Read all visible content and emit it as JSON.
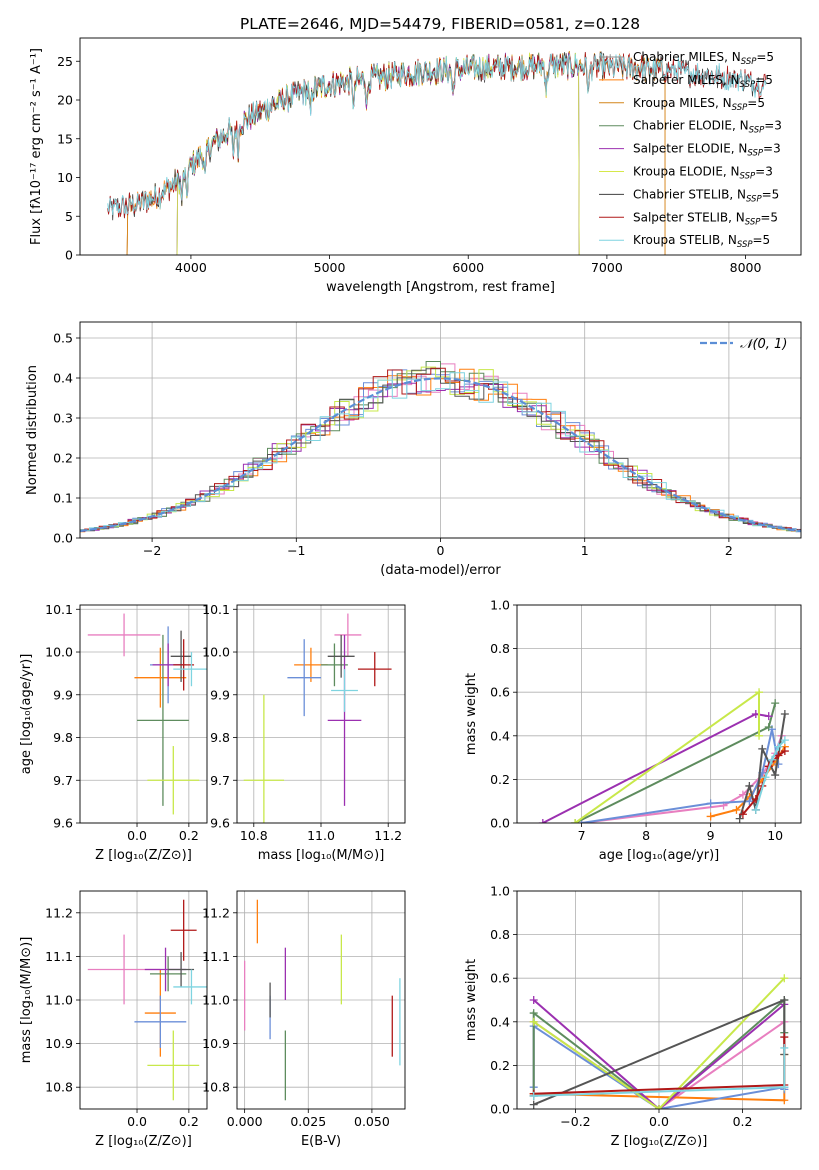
{
  "figure_title": "PLATE=2646, MJD=54479, FIBERID=0581, z=0.128",
  "models": [
    {
      "label": "Chabrier MILES",
      "nssp": "5",
      "color": "#8c8c8c"
    },
    {
      "label": "Salpeter MILES",
      "nssp": "5",
      "color": "#ff7f0e"
    },
    {
      "label": "Kroupa MILES",
      "nssp": "5",
      "color": "#d4861a"
    },
    {
      "label": "Chabrier ELODIE",
      "nssp": "3",
      "color": "#5e8c5e"
    },
    {
      "label": "Salpeter ELODIE",
      "nssp": "3",
      "color": "#9b30b0"
    },
    {
      "label": "Kroupa ELODIE",
      "nssp": "3",
      "color": "#d6e84a"
    },
    {
      "label": "Chabrier STELIB",
      "nssp": "5",
      "color": "#404040"
    },
    {
      "label": "Salpeter STELIB",
      "nssp": "5",
      "color": "#b01818"
    },
    {
      "label": "Kroupa STELIB",
      "nssp": "5",
      "color": "#7fd4e0"
    }
  ],
  "panel_colors": [
    "#e87fc0",
    "#ff7f0e",
    "#6b8fd8",
    "#5e8c5e",
    "#9b30b0",
    "#c8e84a",
    "#555555",
    "#b01818",
    "#7fd4e0"
  ],
  "chart_data": [
    {
      "id": "spectrum",
      "type": "line",
      "title": "PLATE=2646, MJD=54479, FIBERID=0581, z=0.128",
      "xlabel": "wavelength [Angstrom, rest frame]",
      "ylabel": "Flux [fλ10⁻¹⁷ erg cm⁻² s⁻¹ A⁻¹]",
      "xlim": [
        3200,
        8400
      ],
      "ylim": [
        0,
        28
      ],
      "xticks": [
        4000,
        5000,
        6000,
        7000,
        8000
      ],
      "yticks": [
        0,
        5,
        10,
        15,
        20,
        25
      ],
      "spectrum_anchor_points": {
        "x": [
          3450,
          3600,
          3750,
          3900,
          4000,
          4200,
          4400,
          4600,
          4800,
          5000,
          5200,
          5400,
          5600,
          5800,
          6000,
          6200,
          6400,
          6600,
          6800,
          7000,
          7200,
          7400,
          7600,
          7800,
          8000,
          8150
        ],
        "y": [
          6.0,
          6.5,
          7.5,
          9.5,
          11.5,
          15.0,
          17.5,
          19.5,
          21.0,
          22.0,
          22.5,
          23.0,
          23.5,
          23.8,
          24.0,
          24.2,
          24.3,
          24.5,
          24.4,
          24.3,
          24.1,
          23.9,
          23.5,
          23.0,
          22.5,
          22.0
        ]
      },
      "model_ranges": [
        {
          "model": "Chabrier MILES",
          "start": 3540,
          "end": 7420
        },
        {
          "model": "Salpeter MILES",
          "start": 3540,
          "end": 7420
        },
        {
          "model": "Kroupa MILES",
          "start": 3540,
          "end": 7420
        },
        {
          "model": "Chabrier ELODIE",
          "start": 3900,
          "end": 6800
        },
        {
          "model": "Salpeter ELODIE",
          "start": 3900,
          "end": 6800
        },
        {
          "model": "Kroupa ELODIE",
          "start": 3900,
          "end": 6800
        },
        {
          "model": "Chabrier STELIB",
          "start": 3400,
          "end": 8150
        },
        {
          "model": "Salpeter STELIB",
          "start": 3400,
          "end": 8150
        },
        {
          "model": "Kroupa STELIB",
          "start": 3400,
          "end": 8150
        }
      ],
      "legend": "upper right"
    },
    {
      "id": "residuals",
      "type": "bar",
      "xlabel": "(data-model)/error",
      "ylabel": "Normed distribution",
      "xlim": [
        -2.5,
        2.5
      ],
      "ylim": [
        0,
        0.54
      ],
      "xticks": [
        -2,
        -1,
        0,
        1,
        2
      ],
      "yticks": [
        0.0,
        0.1,
        0.2,
        0.3,
        0.4,
        0.5
      ],
      "bin_width": 0.1,
      "legend_label": "𝒩(0, 1)",
      "legend": "upper right",
      "grid": true
    },
    {
      "id": "age_vs_Z",
      "type": "scatter",
      "xlabel": "Z [log₁₀(Z/Z⊙)]",
      "ylabel": "age  [log₁₀(age/yr)]",
      "xlim": [
        -0.22,
        0.27
      ],
      "ylim": [
        9.6,
        10.11
      ],
      "xticks": [
        0.0,
        0.2
      ],
      "yticks": [
        9.6,
        9.7,
        9.8,
        9.9,
        10.0,
        10.1
      ],
      "points": [
        {
          "x": -0.05,
          "y": 10.04,
          "xerr": 0.14,
          "yerr": 0.05
        },
        {
          "x": 0.09,
          "y": 9.94,
          "xerr": 0.1,
          "yerr": 0.07
        },
        {
          "x": 0.12,
          "y": 9.97,
          "xerr": 0.07,
          "yerr": 0.09
        },
        {
          "x": 0.1,
          "y": 9.84,
          "xerr": 0.1,
          "yerr": 0.2
        },
        {
          "x": 0.12,
          "y": 9.97,
          "xerr": 0.06,
          "yerr": 0.05
        },
        {
          "x": 0.14,
          "y": 9.7,
          "xerr": 0.1,
          "yerr": 0.08
        },
        {
          "x": 0.17,
          "y": 9.99,
          "xerr": 0.04,
          "yerr": 0.06
        },
        {
          "x": 0.18,
          "y": 9.97,
          "xerr": 0.04,
          "yerr": 0.06
        },
        {
          "x": 0.21,
          "y": 9.96,
          "xerr": 0.07,
          "yerr": 0.04
        }
      ]
    },
    {
      "id": "age_vs_mass",
      "type": "scatter",
      "xlabel": "mass [log₁₀(M/M⊙)]",
      "ylabel": "",
      "xlim": [
        10.75,
        11.25
      ],
      "ylim": [
        9.6,
        10.11
      ],
      "xticks": [
        10.8,
        11.0,
        11.2
      ],
      "yticks": [
        9.6,
        9.7,
        9.8,
        9.9,
        10.0,
        10.1
      ],
      "points": [
        {
          "x": 11.08,
          "y": 10.04,
          "xerr": 0.04,
          "yerr": 0.05
        },
        {
          "x": 10.97,
          "y": 9.97,
          "xerr": 0.05,
          "yerr": 0.04
        },
        {
          "x": 10.95,
          "y": 9.94,
          "xerr": 0.05,
          "yerr": 0.09
        },
        {
          "x": 11.04,
          "y": 9.97,
          "xerr": 0.04,
          "yerr": 0.05
        },
        {
          "x": 11.07,
          "y": 9.84,
          "xerr": 0.05,
          "yerr": 0.2
        },
        {
          "x": 10.83,
          "y": 9.7,
          "xerr": 0.06,
          "yerr": 0.2
        },
        {
          "x": 11.06,
          "y": 9.99,
          "xerr": 0.04,
          "yerr": 0.05
        },
        {
          "x": 11.16,
          "y": 9.96,
          "xerr": 0.05,
          "yerr": 0.04
        },
        {
          "x": 11.07,
          "y": 9.91,
          "xerr": 0.04,
          "yerr": 0.05
        }
      ]
    },
    {
      "id": "massweight_vs_age",
      "type": "line",
      "xlabel": "age  [log₁₀(age/yr)]",
      "ylabel": "mass weight",
      "xlim": [
        6.0,
        10.4
      ],
      "ylim": [
        0.0,
        1.0
      ],
      "xticks": [
        7,
        8,
        9,
        10
      ],
      "yticks": [
        0.0,
        0.2,
        0.4,
        0.6,
        0.8,
        1.0
      ],
      "series": [
        {
          "x": [
            7.0,
            9.2,
            9.5,
            9.8,
            10.0,
            10.1
          ],
          "y": [
            0.0,
            0.08,
            0.13,
            0.22,
            0.32,
            0.4
          ]
        },
        {
          "x": [
            9.0,
            9.4,
            9.6,
            9.8,
            10.0,
            10.15
          ],
          "y": [
            0.03,
            0.06,
            0.12,
            0.2,
            0.28,
            0.35
          ]
        },
        {
          "x": [
            7.0,
            9.0,
            9.6,
            9.8,
            9.95,
            10.05
          ],
          "y": [
            0.0,
            0.09,
            0.1,
            0.23,
            0.43,
            0.27
          ]
        },
        {
          "x": [
            6.9,
            9.9,
            10.0
          ],
          "y": [
            0.0,
            0.44,
            0.55
          ]
        },
        {
          "x": [
            6.4,
            9.7,
            9.9
          ],
          "y": [
            0.0,
            0.5,
            0.49
          ]
        },
        {
          "x": [
            6.9,
            9.75,
            9.75
          ],
          "y": [
            0.0,
            0.6,
            0.4
          ]
        },
        {
          "x": [
            9.45,
            9.6,
            9.7,
            9.8,
            10.0,
            10.15
          ],
          "y": [
            0.02,
            0.17,
            0.06,
            0.34,
            0.22,
            0.5
          ]
        },
        {
          "x": [
            9.5,
            9.7,
            9.8,
            9.9,
            10.05,
            10.15
          ],
          "y": [
            0.04,
            0.11,
            0.17,
            0.26,
            0.31,
            0.33
          ]
        },
        {
          "x": [
            9.7,
            9.85,
            9.95,
            10.05,
            10.15
          ],
          "y": [
            0.06,
            0.21,
            0.29,
            0.35,
            0.38
          ]
        }
      ]
    },
    {
      "id": "mass_vs_Z",
      "type": "scatter",
      "xlabel": "Z [log₁₀(Z/Z⊙)]",
      "ylabel": "mass [log₁₀(M/M⊙)]",
      "xlim": [
        -0.22,
        0.27
      ],
      "ylim": [
        10.75,
        11.25
      ],
      "xticks": [
        0.0,
        0.2
      ],
      "yticks": [
        10.8,
        10.9,
        11.0,
        11.1,
        11.2
      ],
      "points": [
        {
          "x": -0.05,
          "y": 11.07,
          "xerr": 0.14,
          "yerr": 0.08
        },
        {
          "x": 0.09,
          "y": 10.97,
          "xerr": 0.06,
          "yerr": 0.1
        },
        {
          "x": 0.09,
          "y": 10.95,
          "xerr": 0.1,
          "yerr": 0.06
        },
        {
          "x": 0.12,
          "y": 11.06,
          "xerr": 0.07,
          "yerr": 0.04
        },
        {
          "x": 0.11,
          "y": 11.07,
          "xerr": 0.08,
          "yerr": 0.05
        },
        {
          "x": 0.14,
          "y": 10.85,
          "xerr": 0.1,
          "yerr": 0.08
        },
        {
          "x": 0.17,
          "y": 11.07,
          "xerr": 0.05,
          "yerr": 0.04
        },
        {
          "x": 0.18,
          "y": 11.16,
          "xerr": 0.05,
          "yerr": 0.07
        },
        {
          "x": 0.21,
          "y": 11.03,
          "xerr": 0.07,
          "yerr": 0.04
        }
      ]
    },
    {
      "id": "mass_vs_EBV",
      "type": "scatter",
      "xlabel": "E(B-V)",
      "ylabel": "",
      "xlim": [
        -0.003,
        0.063
      ],
      "ylim": [
        10.75,
        11.25
      ],
      "xticks": [
        0.0,
        0.025,
        0.05
      ],
      "yticks": [
        10.8,
        10.9,
        11.0,
        11.1,
        11.2
      ],
      "points": [
        {
          "x": 0.0,
          "y": 11.01,
          "xerr": 0.0,
          "yerr": 0.08
        },
        {
          "x": 0.005,
          "y": 11.18,
          "xerr": 0.0,
          "yerr": 0.05
        },
        {
          "x": 0.01,
          "y": 10.96,
          "xerr": 0.0,
          "yerr": 0.05
        },
        {
          "x": 0.016,
          "y": 10.85,
          "xerr": 0.0,
          "yerr": 0.08
        },
        {
          "x": 0.016,
          "y": 11.06,
          "xerr": 0.0,
          "yerr": 0.06
        },
        {
          "x": 0.038,
          "y": 11.07,
          "xerr": 0.0,
          "yerr": 0.08
        },
        {
          "x": 0.01,
          "y": 11.0,
          "xerr": 0.0,
          "yerr": 0.04
        },
        {
          "x": 0.058,
          "y": 10.94,
          "xerr": 0.0,
          "yerr": 0.07
        },
        {
          "x": 0.061,
          "y": 10.95,
          "xerr": 0.0,
          "yerr": 0.1
        }
      ]
    },
    {
      "id": "massweight_vs_Z",
      "type": "line",
      "xlabel": "Z [log₁₀(Z/Z⊙)]",
      "ylabel": "mass weight",
      "xlim": [
        -0.34,
        0.34
      ],
      "ylim": [
        0.0,
        1.0
      ],
      "xticks": [
        -0.2,
        0.0,
        0.2
      ],
      "yticks": [
        0.0,
        0.2,
        0.4,
        0.6,
        0.8,
        1.0
      ],
      "series": [
        {
          "x": [
            -0.3,
            -0.3,
            0.0,
            0.3,
            0.3
          ],
          "y": [
            0.06,
            0.4,
            0.0,
            0.4,
            0.09
          ]
        },
        {
          "x": [
            -0.3,
            0.3,
            0.3
          ],
          "y": [
            0.07,
            0.04,
            0.25
          ]
        },
        {
          "x": [
            -0.3,
            -0.3,
            0.0,
            0.3,
            0.3
          ],
          "y": [
            0.1,
            0.38,
            0.0,
            0.1,
            0.09
          ]
        },
        {
          "x": [
            -0.3,
            -0.3,
            0.0,
            0.3,
            0.3
          ],
          "y": [
            0.06,
            0.44,
            0.0,
            0.5,
            0.35
          ]
        },
        {
          "x": [
            -0.3,
            0.0,
            0.3
          ],
          "y": [
            0.5,
            0.0,
            0.48
          ]
        },
        {
          "x": [
            -0.3,
            0.0,
            0.3
          ],
          "y": [
            0.4,
            0.0,
            0.6
          ]
        },
        {
          "x": [
            -0.3,
            0.3,
            0.3
          ],
          "y": [
            0.02,
            0.5,
            0.25
          ]
        },
        {
          "x": [
            -0.3,
            0.3,
            0.3
          ],
          "y": [
            0.07,
            0.11,
            0.33
          ]
        },
        {
          "x": [
            -0.3,
            0.3,
            0.3
          ],
          "y": [
            0.06,
            0.1,
            0.28
          ]
        }
      ]
    }
  ]
}
